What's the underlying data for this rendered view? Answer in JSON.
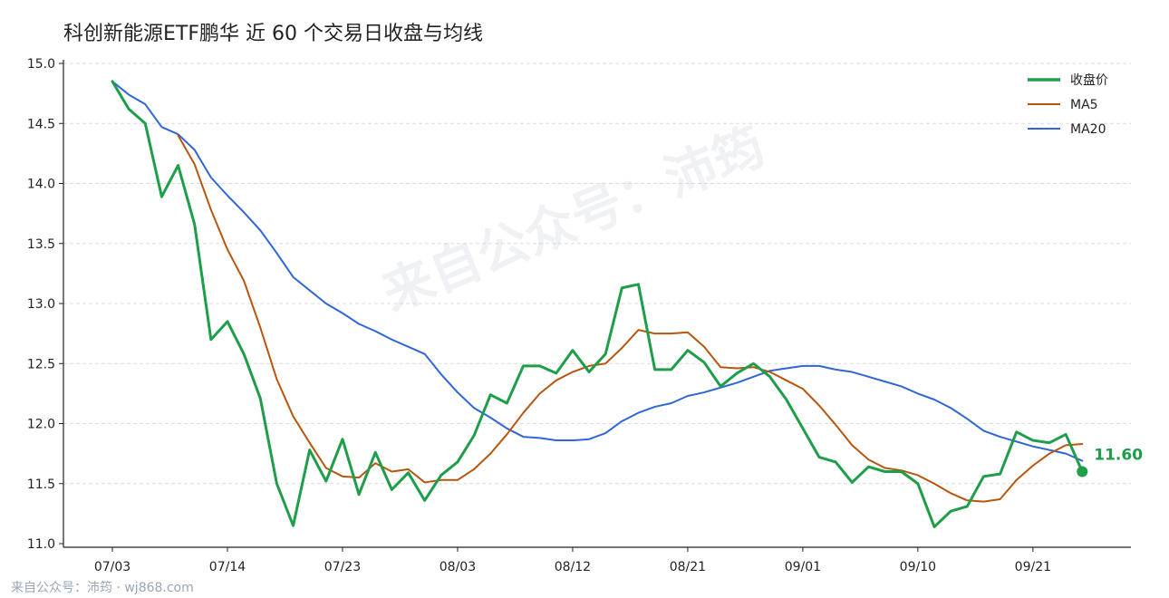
{
  "chart_data": {
    "type": "line",
    "title": "科创新能源ETF鹏华 近 60 个交易日收盘与均线",
    "xlabel": "",
    "ylabel": "",
    "ylim": [
      11.0,
      15.0
    ],
    "yticks": [
      11.0,
      11.5,
      12.0,
      12.5,
      13.0,
      13.5,
      14.0,
      14.5,
      15.0
    ],
    "ytick_labels": [
      "11.0",
      "11.5",
      "12.0",
      "12.5",
      "13.0",
      "13.5",
      "14.0",
      "14.5",
      "15.0"
    ],
    "x_ticks": [
      {
        "label": "07/03",
        "index": 0
      },
      {
        "label": "07/14",
        "index": 7
      },
      {
        "label": "07/23",
        "index": 14
      },
      {
        "label": "08/03",
        "index": 21
      },
      {
        "label": "08/12",
        "index": 28
      },
      {
        "label": "08/21",
        "index": 35
      },
      {
        "label": "09/01",
        "index": 42
      },
      {
        "label": "09/10",
        "index": 49
      },
      {
        "label": "09/21",
        "index": 56
      }
    ],
    "grid": true,
    "legend_position": "top-right",
    "series": [
      {
        "name": "收盘价",
        "color": "#1e9e48",
        "values": [
          14.85,
          14.62,
          14.5,
          13.89,
          14.15,
          13.66,
          12.7,
          12.85,
          12.58,
          12.21,
          11.5,
          11.15,
          11.78,
          11.52,
          11.87,
          11.41,
          11.76,
          11.45,
          11.59,
          11.36,
          11.57,
          11.68,
          11.9,
          12.24,
          12.17,
          12.48,
          12.48,
          12.42,
          12.61,
          12.43,
          12.58,
          13.13,
          13.16,
          12.45,
          12.45,
          12.61,
          12.51,
          12.31,
          12.42,
          12.5,
          12.39,
          12.2,
          11.96,
          11.72,
          11.68,
          11.51,
          11.64,
          11.6,
          11.6,
          11.5,
          11.14,
          11.27,
          11.31,
          11.56,
          11.58,
          11.93,
          11.86,
          11.84,
          11.91,
          11.6
        ]
      },
      {
        "name": "MA5",
        "color": "#b8560f",
        "values": [
          null,
          null,
          null,
          null,
          14.4,
          14.16,
          13.78,
          13.45,
          13.19,
          12.8,
          12.37,
          12.06,
          11.84,
          11.63,
          11.56,
          11.55,
          11.67,
          11.6,
          11.62,
          11.51,
          11.53,
          11.53,
          11.62,
          11.75,
          11.91,
          12.09,
          12.25,
          12.36,
          12.43,
          12.48,
          12.5,
          12.63,
          12.78,
          12.75,
          12.75,
          12.76,
          12.64,
          12.47,
          12.46,
          12.47,
          12.43,
          12.36,
          12.29,
          12.15,
          11.99,
          11.82,
          11.7,
          11.63,
          11.61,
          11.57,
          11.5,
          11.42,
          11.36,
          11.35,
          11.37,
          11.53,
          11.65,
          11.75,
          11.82,
          11.83
        ]
      },
      {
        "name": "MA20",
        "color": "#2f66d8",
        "values": [
          14.85,
          14.74,
          14.66,
          14.47,
          14.41,
          14.28,
          14.05,
          13.9,
          13.76,
          13.61,
          13.42,
          13.22,
          13.11,
          13.0,
          12.92,
          12.83,
          12.77,
          12.7,
          12.64,
          12.58,
          12.41,
          12.26,
          12.13,
          12.05,
          11.96,
          11.89,
          11.88,
          11.86,
          11.86,
          11.87,
          11.92,
          12.02,
          12.09,
          12.14,
          12.17,
          12.23,
          12.26,
          12.3,
          12.34,
          12.39,
          12.44,
          12.46,
          12.48,
          12.48,
          12.45,
          12.43,
          12.39,
          12.35,
          12.31,
          12.25,
          12.2,
          12.13,
          12.04,
          11.94,
          11.89,
          11.85,
          11.81,
          11.78,
          11.75,
          11.69
        ]
      }
    ],
    "end_label": "11.60",
    "watermark": "来自公众号：沛筠"
  },
  "footer": "来自公众号：沛筠 · wj868.com"
}
